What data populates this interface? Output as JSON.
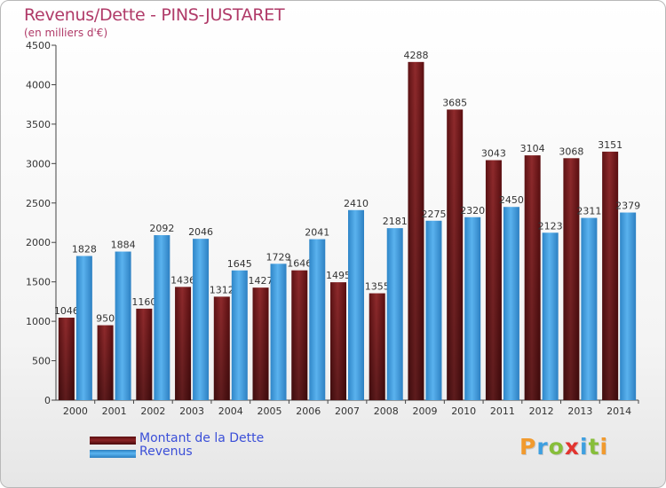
{
  "title": "Revenus/Dette - PINS-JUSTARET",
  "subtitle": "(en milliers d'€)",
  "logo": {
    "text": "Proxiti",
    "letters": [
      {
        "ch": "P",
        "color": "#f19a2e"
      },
      {
        "ch": "r",
        "color": "#3e9fe0"
      },
      {
        "ch": "o",
        "color": "#87be3a"
      },
      {
        "ch": "x",
        "color": "#e2342f"
      },
      {
        "ch": "i",
        "color": "#3e9fe0"
      },
      {
        "ch": "t",
        "color": "#87be3a"
      },
      {
        "ch": "i",
        "color": "#f19a2e"
      }
    ]
  },
  "chart_data": {
    "type": "bar",
    "categories": [
      "2000",
      "2001",
      "2002",
      "2003",
      "2004",
      "2005",
      "2006",
      "2007",
      "2008",
      "2009",
      "2010",
      "2011",
      "2012",
      "2013",
      "2014"
    ],
    "series": [
      {
        "name": "Montant de la Dette",
        "color": "#8b2426",
        "values": [
          1046,
          950,
          1160,
          1436,
          1312,
          1427,
          1646,
          1495,
          1355,
          4288,
          3685,
          3043,
          3104,
          3068,
          3151
        ],
        "labels": [
          "1046",
          "950",
          "1160",
          "1436",
          "1312",
          "1427",
          "1646",
          "1495",
          "1355",
          "4288",
          "3685",
          "3043",
          "3104",
          "3068",
          "3151"
        ]
      },
      {
        "name": "Revenus",
        "color": "#3f9de0",
        "values": [
          1828,
          1884,
          2092,
          2046,
          1645,
          1729,
          2041,
          2410,
          2181,
          2275,
          2320,
          2450,
          2123,
          2311,
          2379
        ],
        "labels": [
          "1828",
          "1884",
          "2092",
          "2046",
          "1645",
          "1729",
          "2041",
          "2410",
          "2181",
          "2275",
          "2320",
          "2450",
          "2123",
          "2311",
          "2379"
        ]
      }
    ],
    "ylim": [
      0,
      4500
    ],
    "yticks": [
      0,
      500,
      1000,
      1500,
      2000,
      2500,
      3000,
      3500,
      4000,
      4500
    ],
    "xlabel": "",
    "ylabel": "",
    "grid": false,
    "legend": "bottom-left"
  }
}
